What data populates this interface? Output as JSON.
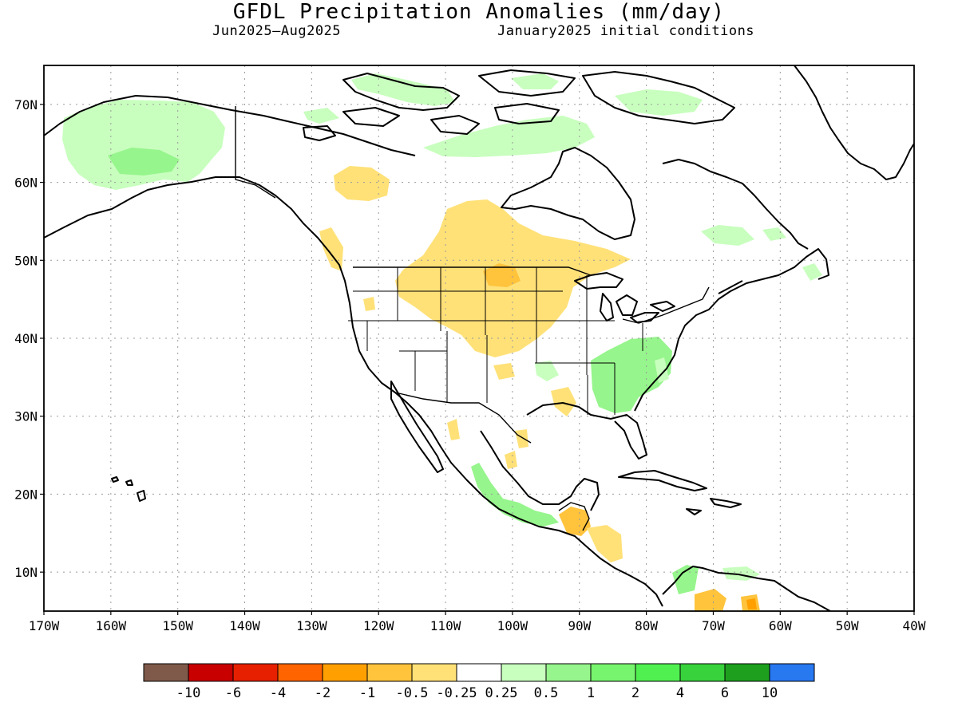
{
  "title": "GFDL Precipitation Anomalies (mm/day)",
  "subtitle_left": "Jun2025—Aug2025",
  "subtitle_right": "January2025 initial conditions",
  "map": {
    "lon_range": [
      -170,
      -40
    ],
    "lat_range": [
      5,
      75
    ],
    "lon_ticks": [
      {
        "value": -170,
        "label": "170W"
      },
      {
        "value": -160,
        "label": "160W"
      },
      {
        "value": -150,
        "label": "150W"
      },
      {
        "value": -140,
        "label": "140W"
      },
      {
        "value": -130,
        "label": "130W"
      },
      {
        "value": -120,
        "label": "120W"
      },
      {
        "value": -110,
        "label": "110W"
      },
      {
        "value": -100,
        "label": "100W"
      },
      {
        "value": -90,
        "label": "90W"
      },
      {
        "value": -80,
        "label": "80W"
      },
      {
        "value": -70,
        "label": "70W"
      },
      {
        "value": -60,
        "label": "60W"
      },
      {
        "value": -50,
        "label": "50W"
      },
      {
        "value": -40,
        "label": "40W"
      }
    ],
    "lat_ticks": [
      {
        "value": 10,
        "label": "10N"
      },
      {
        "value": 20,
        "label": "20N"
      },
      {
        "value": 30,
        "label": "30N"
      },
      {
        "value": 40,
        "label": "40N"
      },
      {
        "value": 50,
        "label": "50N"
      },
      {
        "value": 60,
        "label": "60N"
      },
      {
        "value": 70,
        "label": "70N"
      }
    ],
    "grid": true
  },
  "legend": {
    "colors": [
      "#7f5a4a",
      "#c80000",
      "#e62000",
      "#ff6400",
      "#ffa000",
      "#ffc33c",
      "#ffe178",
      "#ffffff",
      "#c8ffbe",
      "#96f58c",
      "#78f56e",
      "#50f050",
      "#37d23c",
      "#1ea01e",
      "#2878f0"
    ],
    "labels": [
      "-10",
      "-6",
      "-4",
      "-2",
      "-1",
      "-0.5",
      "-0.25",
      "0.25",
      "0.5",
      "1",
      "2",
      "4",
      "6",
      "10"
    ]
  }
}
